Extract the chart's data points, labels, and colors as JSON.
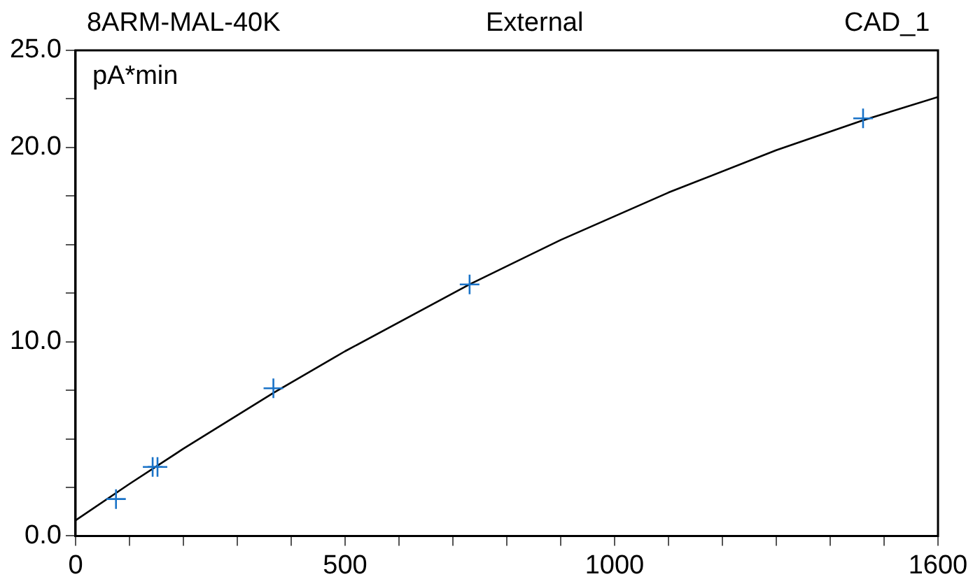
{
  "chart_data": {
    "type": "scatter",
    "title": "External",
    "annotations": [
      "8ARM-MAL-40K",
      "CAD_1"
    ],
    "ylabel": "pA*min",
    "series": [
      {
        "color": "#1a73c8",
        "marker": "cross",
        "x": [
          75,
          143,
          152,
          367,
          731,
          1461
        ],
        "values": [
          1.9,
          3.55,
          3.55,
          7.6,
          12.95,
          21.5
        ]
      },
      {
        "type": "line",
        "color": "#000000",
        "marker": "none",
        "line_style": "solid",
        "x": [
          0,
          100,
          200,
          367,
          500,
          731,
          900,
          1100,
          1300,
          1461,
          1600
        ],
        "values": [
          0.8,
          2.68,
          4.49,
          7.36,
          9.51,
          12.95,
          15.24,
          17.68,
          19.86,
          21.4,
          22.6
        ]
      }
    ],
    "xlim": [
      0,
      1600
    ],
    "xticks": [
      0,
      {
        "value": 100,
        "label": null
      },
      {
        "value": 200,
        "label": null
      },
      {
        "value": 300,
        "label": null
      },
      {
        "value": 400,
        "label": null
      },
      500,
      {
        "value": 600,
        "label": null
      },
      {
        "value": 700,
        "label": null
      },
      {
        "value": 800,
        "label": null
      },
      {
        "value": 900,
        "label": null
      },
      1000,
      {
        "value": 1100,
        "label": null
      },
      {
        "value": 1200,
        "label": null
      },
      {
        "value": 1300,
        "label": null
      },
      {
        "value": 1400,
        "label": null
      },
      {
        "value": 1500,
        "label": null
      },
      1600
    ],
    "ylim": [
      0,
      25
    ],
    "yticks": [
      {
        "value": 0,
        "label": "0.0"
      },
      {
        "value": 2.5,
        "label": null
      },
      {
        "value": 5,
        "label": null
      },
      {
        "value": 7.5,
        "label": null
      },
      {
        "value": 10,
        "label": "10.0"
      },
      {
        "value": 12.5,
        "label": null
      },
      {
        "value": 15,
        "label": null
      },
      {
        "value": 17.5,
        "label": null
      },
      {
        "value": 20,
        "label": "20.0"
      },
      {
        "value": 22.5,
        "label": null
      },
      {
        "value": 25,
        "label": "25.0"
      }
    ],
    "grid": false,
    "legend": false
  }
}
